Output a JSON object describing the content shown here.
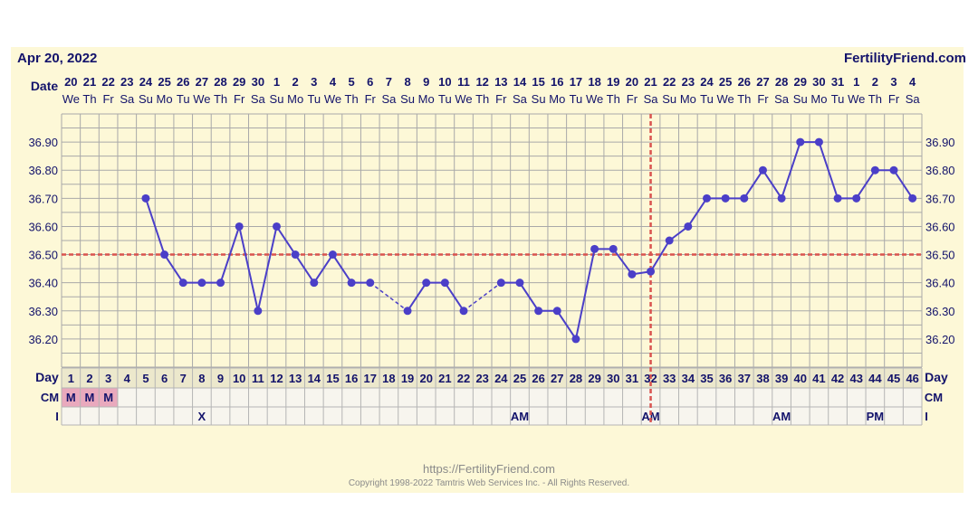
{
  "header": {
    "date": "Apr 20, 2022",
    "site": "FertilityFriend.com"
  },
  "footer": {
    "url": "https://FertilityFriend.com",
    "copyright": "Copyright 1998-2022 Tamtris Web Services Inc. - All Rights Reserved."
  },
  "row_labels": {
    "date": "Date",
    "day": "Day",
    "cm": "CM",
    "i": "I"
  },
  "colors": {
    "line": "#4b3fc8",
    "coverline": "#d9534f",
    "text": "#13136b",
    "panel": "#fdf8d7",
    "menses": "#e9a9bd"
  },
  "chart_data": {
    "type": "line",
    "x": [
      1,
      2,
      3,
      4,
      5,
      6,
      7,
      8,
      9,
      10,
      11,
      12,
      13,
      14,
      15,
      16,
      17,
      18,
      19,
      20,
      21,
      22,
      23,
      24,
      25,
      26,
      27,
      28,
      29,
      30,
      31,
      32,
      33,
      34,
      35,
      36,
      37,
      38,
      39,
      40,
      41,
      42,
      43,
      44,
      45,
      46
    ],
    "dates": [
      "20",
      "21",
      "22",
      "23",
      "24",
      "25",
      "26",
      "27",
      "28",
      "29",
      "30",
      "1",
      "2",
      "3",
      "4",
      "5",
      "6",
      "7",
      "8",
      "9",
      "10",
      "11",
      "12",
      "13",
      "14",
      "15",
      "16",
      "17",
      "18",
      "19",
      "20",
      "21",
      "22",
      "23",
      "24",
      "25",
      "26",
      "27",
      "28",
      "29",
      "30",
      "31",
      "1",
      "2",
      "3",
      "4"
    ],
    "weekdays": [
      "We",
      "Th",
      "Fr",
      "Sa",
      "Su",
      "Mo",
      "Tu",
      "We",
      "Th",
      "Fr",
      "Sa",
      "Su",
      "Mo",
      "Tu",
      "We",
      "Th",
      "Fr",
      "Sa",
      "Su",
      "Mo",
      "Tu",
      "We",
      "Th",
      "Fr",
      "Sa",
      "Su",
      "Mo",
      "Tu",
      "We",
      "Th",
      "Fr",
      "Sa",
      "Su",
      "Mo",
      "Tu",
      "We",
      "Th",
      "Fr",
      "Sa",
      "Su",
      "Mo",
      "Tu",
      "We",
      "Th",
      "Fr",
      "Sa"
    ],
    "temps": [
      null,
      null,
      null,
      null,
      36.7,
      36.5,
      36.4,
      36.4,
      36.4,
      36.6,
      36.3,
      36.6,
      36.5,
      36.4,
      36.5,
      36.4,
      36.4,
      null,
      36.3,
      36.4,
      36.4,
      36.3,
      null,
      36.4,
      36.4,
      36.3,
      36.3,
      36.2,
      36.52,
      36.52,
      36.43,
      36.44,
      36.55,
      36.6,
      36.7,
      36.7,
      36.7,
      36.8,
      36.7,
      36.9,
      36.9,
      36.7,
      36.7,
      36.8,
      36.8,
      36.7
    ],
    "ylim": [
      36.1,
      37.0
    ],
    "yticks": [
      "36.20",
      "36.30",
      "36.40",
      "36.50",
      "36.60",
      "36.70",
      "36.80",
      "36.90"
    ],
    "coverline": 36.5,
    "ovulation_day": 32,
    "cm": [
      "M",
      "M",
      "M",
      "",
      "",
      "",
      "",
      "",
      "",
      "",
      "",
      "",
      "",
      "",
      "",
      "",
      "",
      "",
      "",
      "",
      "",
      "",
      "",
      "",
      "",
      "",
      "",
      "",
      "",
      "",
      "",
      "",
      "",
      "",
      "",
      "",
      "",
      "",
      "",
      "",
      "",
      "",
      "",
      "",
      "",
      ""
    ],
    "intercourse": [
      "",
      "",
      "",
      "",
      "",
      "",
      "",
      "X",
      "",
      "",
      "",
      "",
      "",
      "",
      "",
      "",
      "",
      "",
      "",
      "",
      "",
      "",
      "",
      "",
      "AM",
      "",
      "",
      "",
      "",
      "",
      "",
      "AM",
      "",
      "",
      "",
      "",
      "",
      "",
      "AM",
      "",
      "",
      "",
      "",
      "PM",
      "",
      ""
    ],
    "grid": true
  }
}
